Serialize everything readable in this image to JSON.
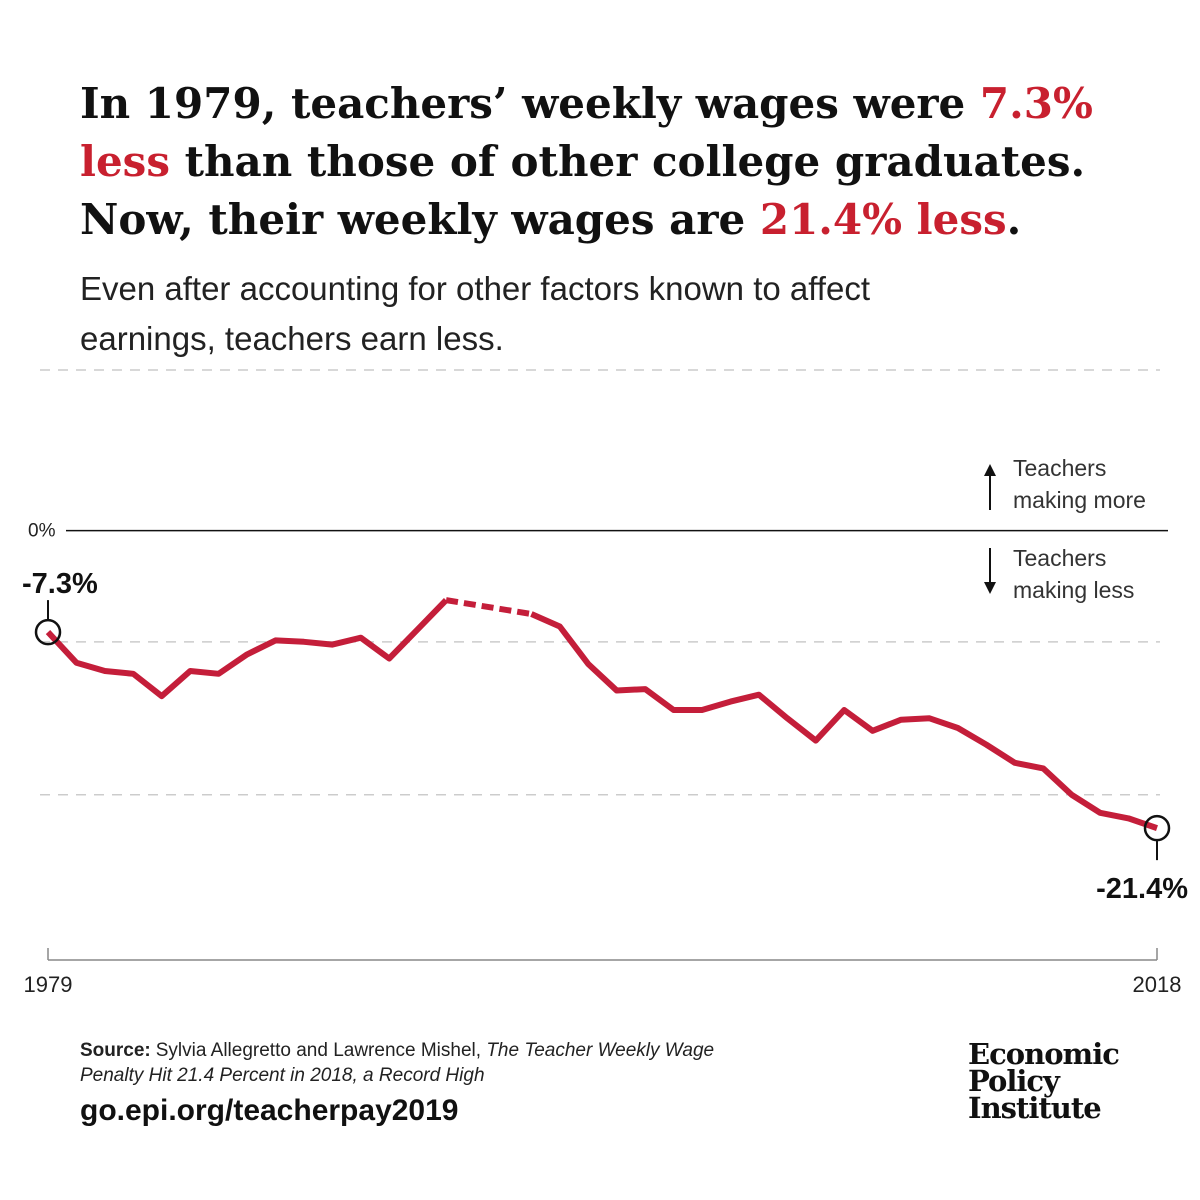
{
  "header": {
    "title_lines": [
      [
        {
          "text": "In 1979, teachers’ weekly wages were "
        },
        {
          "text": "7.3%",
          "color": "#c8202f"
        }
      ],
      [
        {
          "text": "less",
          "color": "#c8202f"
        },
        {
          "text": " than those of other college graduates."
        }
      ],
      [
        {
          "text": "Now, their weekly wages are "
        },
        {
          "text": "21.4% less",
          "color": "#c8202f"
        },
        {
          "text": "."
        }
      ]
    ],
    "subtitle_lines": [
      "Even after accounting for other factors known to affect",
      "earnings, teachers earn less."
    ]
  },
  "chart_data": {
    "type": "line",
    "x": [
      1979,
      1980,
      1981,
      1982,
      1983,
      1984,
      1985,
      1986,
      1987,
      1988,
      1989,
      1990,
      1991,
      1992,
      1993,
      1994,
      1995,
      1996,
      1997,
      1998,
      1999,
      2000,
      2001,
      2002,
      2003,
      2004,
      2005,
      2006,
      2007,
      2008,
      2009,
      2010,
      2011,
      2012,
      2013,
      2014,
      2015,
      2016,
      2017,
      2018
    ],
    "series": [
      {
        "color": "#c41e3a",
        "values": [
          -7.3,
          -9.5,
          -10.1,
          -10.3,
          -11.9,
          -10.1,
          -10.3,
          -8.9,
          -7.9,
          -8.0,
          -8.2,
          -7.7,
          -9.2,
          -7.1,
          -5.0,
          null,
          null,
          -6.0,
          -6.9,
          -9.6,
          -11.5,
          -11.4,
          -12.9,
          -12.9,
          -12.3,
          -11.8,
          -13.5,
          -15.1,
          -12.9,
          -14.4,
          -13.6,
          -13.5,
          -14.2,
          -15.4,
          -16.7,
          -17.1,
          -19.0,
          -20.3,
          -20.7,
          -21.4
        ]
      }
    ],
    "xlim": [
      1979,
      2018
    ],
    "xticks": [
      1979,
      2018
    ],
    "ylim": [
      -27,
      4
    ],
    "yticks": [
      {
        "value": 0,
        "label": "0%"
      }
    ],
    "gridlines": [
      -8,
      -19
    ],
    "annotations": [
      {
        "label": "-7.3%",
        "value": -7.3,
        "x": 1979
      },
      {
        "label": "-21.4%",
        "value": -21.4,
        "x": 2018
      }
    ],
    "direction_labels": [
      [
        "Teachers",
        "making more"
      ],
      [
        "Teachers",
        "making less"
      ]
    ]
  },
  "footer": {
    "source_label": "Source:",
    "source_authors": "Sylvia Allegretto and Lawrence Mishel, ",
    "source_title_lines": [
      "The Teacher Weekly Wage",
      "Penalty Hit 21.4 Percent in 2018, a Record High"
    ],
    "url": "go.epi.org/teacherpay2019",
    "logo_lines": [
      "Economic",
      "Policy",
      "Institute"
    ]
  }
}
